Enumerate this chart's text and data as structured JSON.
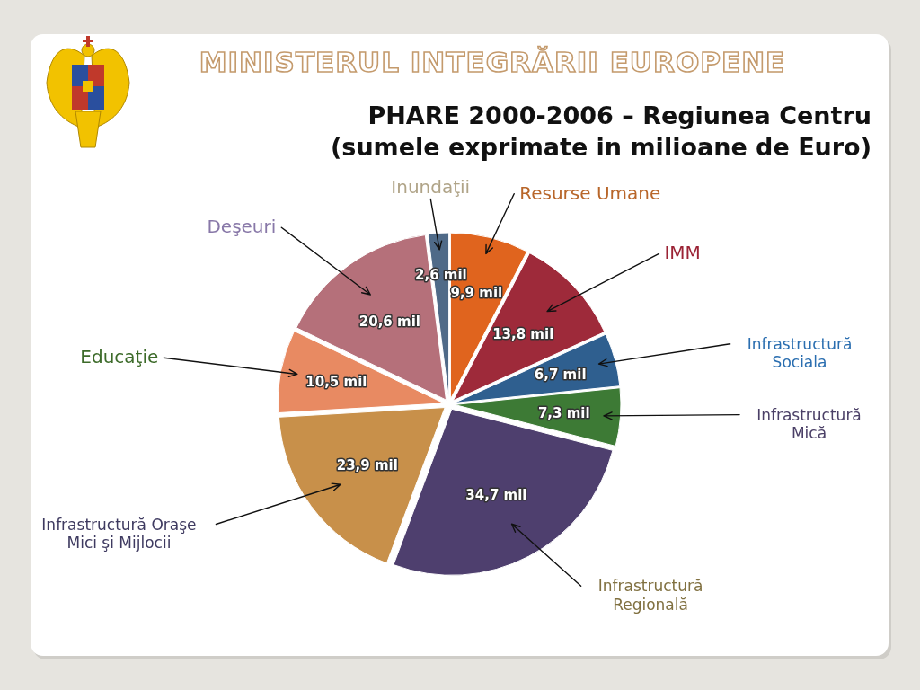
{
  "chart_data": {
    "type": "pie",
    "title": "PHARE 2000-2006 – Regiunea Centru",
    "subtitle": "(sumele exprimate in milioane de Euro)",
    "annotations": [
      "MINISTERUL INTEGRĂRII EUROPENE"
    ],
    "categories": [
      "Resurse Umane",
      "IMM",
      "Infrastructură Sociala",
      "Infrastructură Mică",
      "Infrastructură Regională",
      "Infrastructură Oraşe Mici şi Mijlocii",
      "Educaţie",
      "Deşeuri",
      "Inundaţii"
    ],
    "values": [
      9.9,
      13.8,
      6.7,
      7.3,
      34.7,
      23.9,
      10.5,
      20.6,
      2.6
    ],
    "colors": [
      "#e0641e",
      "#9e2a3a",
      "#2f5f8f",
      "#3d7a35",
      "#4e3f6e",
      "#c8904a",
      "#e88a62",
      "#b5707a",
      "#4f6a88"
    ],
    "value_labels": [
      "9,9 mil",
      "13,8 mil",
      "6,7 mil",
      "7,3 mil",
      "34,7 mil",
      "23,9 mil",
      "10,5 mil",
      "20,6 mil",
      "2,6 mil"
    ]
  }
}
